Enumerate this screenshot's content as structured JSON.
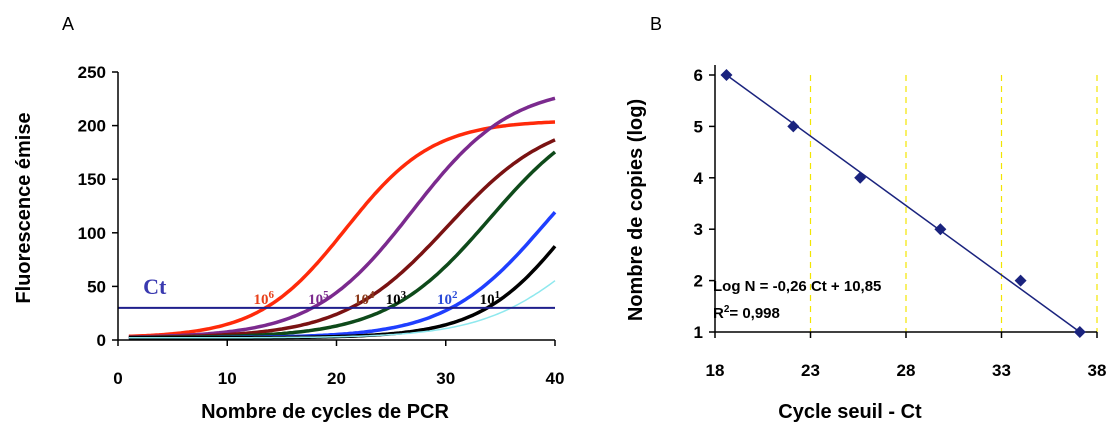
{
  "chart_data": [
    {
      "panel_label": "A",
      "type": "line",
      "xlabel": "Nombre de cycles de PCR",
      "ylabel": "Fluorescence émise",
      "xlim": [
        0,
        40
      ],
      "ylim": [
        0,
        250
      ],
      "xticks": [
        0,
        10,
        20,
        30,
        40
      ],
      "yticks": [
        0,
        50,
        100,
        150,
        200,
        250
      ],
      "threshold": {
        "label": "Ct",
        "value": 30,
        "color": "#1f1f8c"
      },
      "series": [
        {
          "name": "10",
          "exp": "6",
          "color": "#ff2a0a",
          "ct": 13.5,
          "vmax": 205,
          "k": 0.25,
          "lw": 3.5
        },
        {
          "name": "10",
          "exp": "5",
          "color": "#7b2a8e",
          "ct": 17.8,
          "vmax": 238,
          "k": 0.22,
          "lw": 3.5
        },
        {
          "name": "10",
          "exp": "4",
          "color": "#7a1212",
          "ct": 21.3,
          "vmax": 210,
          "k": 0.21,
          "lw": 3.5
        },
        {
          "name": "10",
          "exp": "3",
          "color": "#0e4a1a",
          "ct": 24.8,
          "vmax": 225,
          "k": 0.21,
          "lw": 3.5
        },
        {
          "name": "10",
          "exp": "2",
          "color": "#1f3fff",
          "ct": 30.5,
          "vmax": 215,
          "k": 0.22,
          "lw": 3.5
        },
        {
          "name": "10",
          "exp": "1",
          "color": "#000000",
          "ct": 33.8,
          "vmax": 215,
          "k": 0.24,
          "lw": 3.5
        },
        {
          "name": "",
          "exp": "",
          "color": "#8ee8ee",
          "ct": 36.0,
          "vmax": 150,
          "k": 0.22,
          "lw": 1.5
        },
        {
          "name": "",
          "exp": "",
          "color": "#e020e0",
          "ct": 60.0,
          "vmax": 10,
          "k": 0.2,
          "lw": 1.5
        }
      ],
      "labels": [
        {
          "base": "10",
          "exp": "6",
          "color": "#e8401a"
        },
        {
          "base": "10",
          "exp": "5",
          "color": "#7b2a8e"
        },
        {
          "base": "10",
          "exp": "4",
          "color": "#8b3a1a"
        },
        {
          "base": "10",
          "exp": "3",
          "color": "#000000"
        },
        {
          "base": "10",
          "exp": "2",
          "color": "#2a4bd8"
        },
        {
          "base": "10",
          "exp": "1",
          "color": "#000000"
        }
      ]
    },
    {
      "panel_label": "B",
      "type": "scatter",
      "xlabel": "Cycle seuil - Ct",
      "ylabel": "Nombre de copies (log)",
      "xlim": [
        18,
        38
      ],
      "ylim": [
        1,
        6
      ],
      "xticks": [
        18,
        23,
        28,
        33,
        38
      ],
      "yticks": [
        1,
        2,
        3,
        4,
        5,
        6
      ],
      "color": "#1a237e",
      "points": [
        {
          "x": 18.6,
          "y": 6
        },
        {
          "x": 22.1,
          "y": 5
        },
        {
          "x": 25.6,
          "y": 4
        },
        {
          "x": 29.8,
          "y": 3
        },
        {
          "x": 34.0,
          "y": 2
        },
        {
          "x": 37.1,
          "y": 1
        }
      ],
      "fit": {
        "slope": -0.26,
        "intercept": 10.85
      },
      "equation": "Log N = -0,26 Ct + 10,85",
      "r2_label": "R",
      "r2_sup": "2",
      "r2_value": "= 0,998"
    }
  ]
}
